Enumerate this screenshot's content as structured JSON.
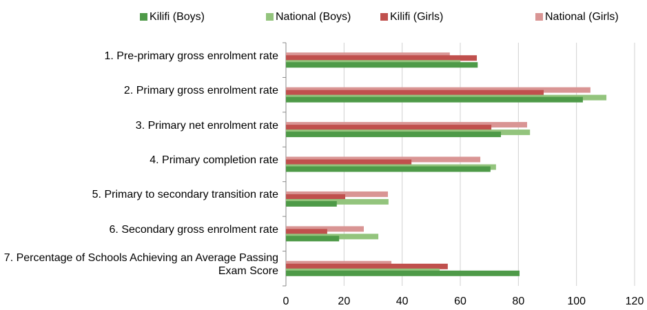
{
  "chart_data": {
    "type": "bar",
    "orientation": "horizontal",
    "categories": [
      "1. Pre-primary gross enrolment rate",
      "2. Primary gross enrolment rate",
      "3. Primary net enrolment rate",
      "4. Primary completion rate",
      "5. Primary to secondary transition rate",
      "6. Secondary gross enrolment rate",
      "7. Percentage of Schools Achieving an Average Passing Exam Score"
    ],
    "series": [
      {
        "name": "Kilifi (Boys)",
        "color": "#4e9a48",
        "values": [
          66,
          102.2,
          74,
          70.4,
          17.5,
          18.3,
          80.4
        ]
      },
      {
        "name": "National (Boys)",
        "color": "#93c47d",
        "values": [
          60,
          110.3,
          84,
          72.3,
          35.3,
          31.8,
          52.9
        ]
      },
      {
        "name": "Kilifi (Girls)",
        "color": "#c0504d",
        "values": [
          65.7,
          88.7,
          70.7,
          43.2,
          20.4,
          14.2,
          55.7
        ]
      },
      {
        "name": "National (Girls)",
        "color": "#d99594",
        "values": [
          56.4,
          104.8,
          83,
          66.9,
          35.1,
          26.8,
          36.3
        ]
      }
    ],
    "xlim": [
      0,
      120
    ],
    "xticks": [
      0,
      20,
      40,
      60,
      80,
      100,
      120
    ],
    "grid": true,
    "legend": "top"
  }
}
